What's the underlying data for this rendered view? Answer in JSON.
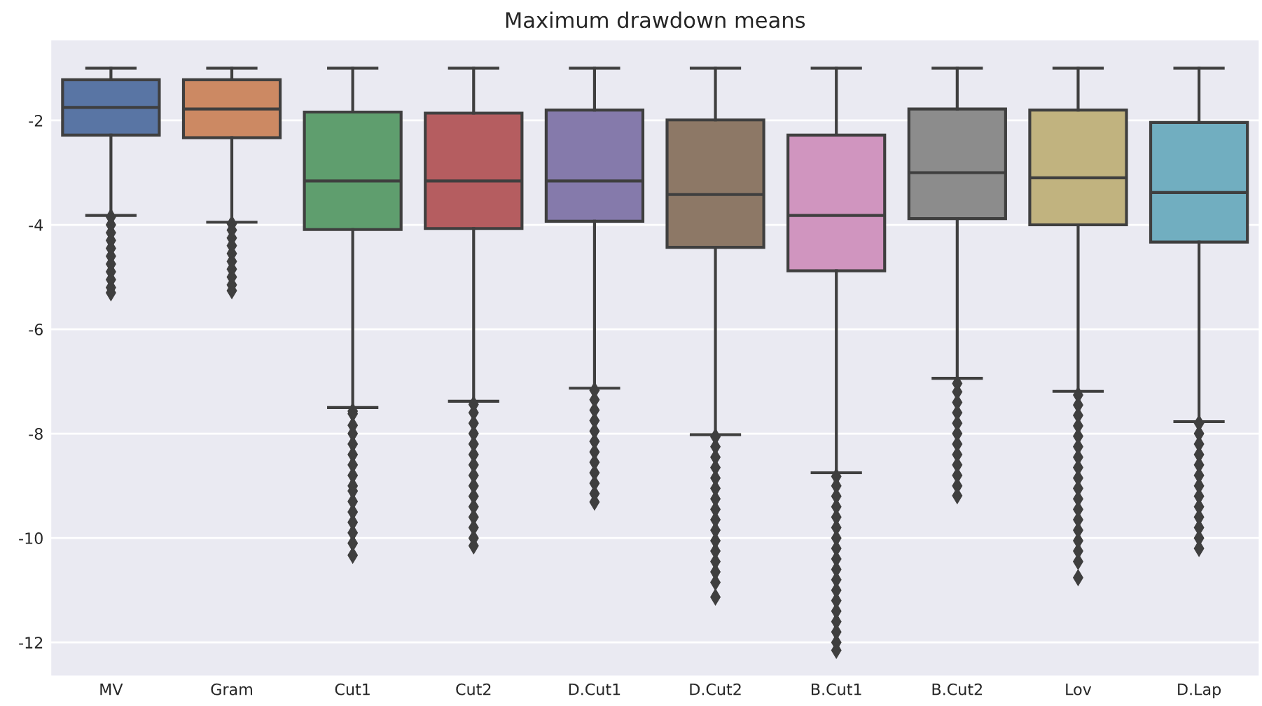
{
  "chart_data": {
    "type": "box",
    "title": "Maximum drawdown means",
    "categories": [
      "MV",
      "Gram",
      "Cut1",
      "Cut2",
      "D.Cut1",
      "D.Cut2",
      "B.Cut1",
      "B.Cut2",
      "Lov",
      "D.Lap"
    ],
    "colors": [
      "#5975a4",
      "#cc8963",
      "#5f9e6e",
      "#b55d60",
      "#857aab",
      "#8d7866",
      "#d095bf",
      "#8c8c8c",
      "#c1b37f",
      "#71aec0"
    ],
    "boxes": [
      {
        "low": -3.82,
        "q1": -2.28,
        "median": -1.75,
        "q3": -1.22,
        "high": -1.0,
        "outliers": [
          -3.85,
          -4.0,
          -4.15,
          -4.3,
          -4.45,
          -4.6,
          -4.75,
          -4.9,
          -5.05,
          -5.2,
          -5.3
        ]
      },
      {
        "low": -3.95,
        "q1": -2.33,
        "median": -1.78,
        "q3": -1.22,
        "high": -1.0,
        "outliers": [
          -3.98,
          -4.1,
          -4.25,
          -4.4,
          -4.55,
          -4.7,
          -4.85,
          -5.0,
          -5.15,
          -5.26
        ]
      },
      {
        "low": -7.5,
        "q1": -4.09,
        "median": -3.16,
        "q3": -1.84,
        "high": -1.0,
        "outliers": [
          -7.57,
          -7.62,
          -7.84,
          -8.0,
          -8.2,
          -8.4,
          -8.6,
          -8.8,
          -9.0,
          -9.1,
          -9.3,
          -9.5,
          -9.7,
          -9.9,
          -10.1,
          -10.33
        ]
      },
      {
        "low": -7.38,
        "q1": -4.07,
        "median": -3.16,
        "q3": -1.86,
        "high": -1.0,
        "outliers": [
          -7.44,
          -7.6,
          -7.8,
          -8.0,
          -8.2,
          -8.4,
          -8.6,
          -8.8,
          -9.0,
          -9.2,
          -9.4,
          -9.6,
          -9.8,
          -10.0,
          -10.15
        ]
      },
      {
        "low": -7.13,
        "q1": -3.93,
        "median": -3.16,
        "q3": -1.8,
        "high": -1.0,
        "outliers": [
          -7.17,
          -7.35,
          -7.55,
          -7.75,
          -7.95,
          -8.15,
          -8.35,
          -8.55,
          -8.75,
          -8.95,
          -9.15,
          -9.31
        ]
      },
      {
        "low": -8.02,
        "q1": -4.43,
        "median": -3.42,
        "q3": -1.99,
        "high": -1.0,
        "outliers": [
          -8.06,
          -8.25,
          -8.45,
          -8.65,
          -8.85,
          -9.05,
          -9.25,
          -9.45,
          -9.65,
          -9.85,
          -10.05,
          -10.25,
          -10.45,
          -10.65,
          -10.85,
          -11.13
        ]
      },
      {
        "low": -8.75,
        "q1": -4.88,
        "median": -3.82,
        "q3": -2.28,
        "high": -1.0,
        "outliers": [
          -8.82,
          -9.0,
          -9.2,
          -9.4,
          -9.6,
          -9.8,
          -10.0,
          -10.2,
          -10.4,
          -10.6,
          -10.8,
          -11.0,
          -11.2,
          -11.4,
          -11.6,
          -11.8,
          -12.0,
          -12.15
        ]
      },
      {
        "low": -6.94,
        "q1": -3.88,
        "median": -3.0,
        "q3": -1.78,
        "high": -1.0,
        "outliers": [
          -7.04,
          -7.2,
          -7.4,
          -7.6,
          -7.8,
          -8.0,
          -8.2,
          -8.4,
          -8.6,
          -8.8,
          -9.0,
          -9.19
        ]
      },
      {
        "low": -7.19,
        "q1": -4.0,
        "median": -3.1,
        "q3": -1.8,
        "high": -1.0,
        "outliers": [
          -7.26,
          -7.45,
          -7.65,
          -7.85,
          -8.05,
          -8.25,
          -8.45,
          -8.65,
          -8.85,
          -9.05,
          -9.25,
          -9.45,
          -9.65,
          -9.85,
          -10.05,
          -10.25,
          -10.45,
          -10.76
        ]
      },
      {
        "low": -7.77,
        "q1": -4.33,
        "median": -3.38,
        "q3": -2.04,
        "high": -1.0,
        "outliers": [
          -7.8,
          -8.0,
          -8.2,
          -8.4,
          -8.6,
          -8.8,
          -9.0,
          -9.2,
          -9.4,
          -9.6,
          -9.8,
          -10.0,
          -10.2
        ]
      }
    ],
    "ylim": [
      -12.65,
      -0.45
    ],
    "yticks": [
      -2,
      -4,
      -6,
      -8,
      -10,
      -12
    ],
    "grid": "y",
    "marker": "diamond"
  }
}
